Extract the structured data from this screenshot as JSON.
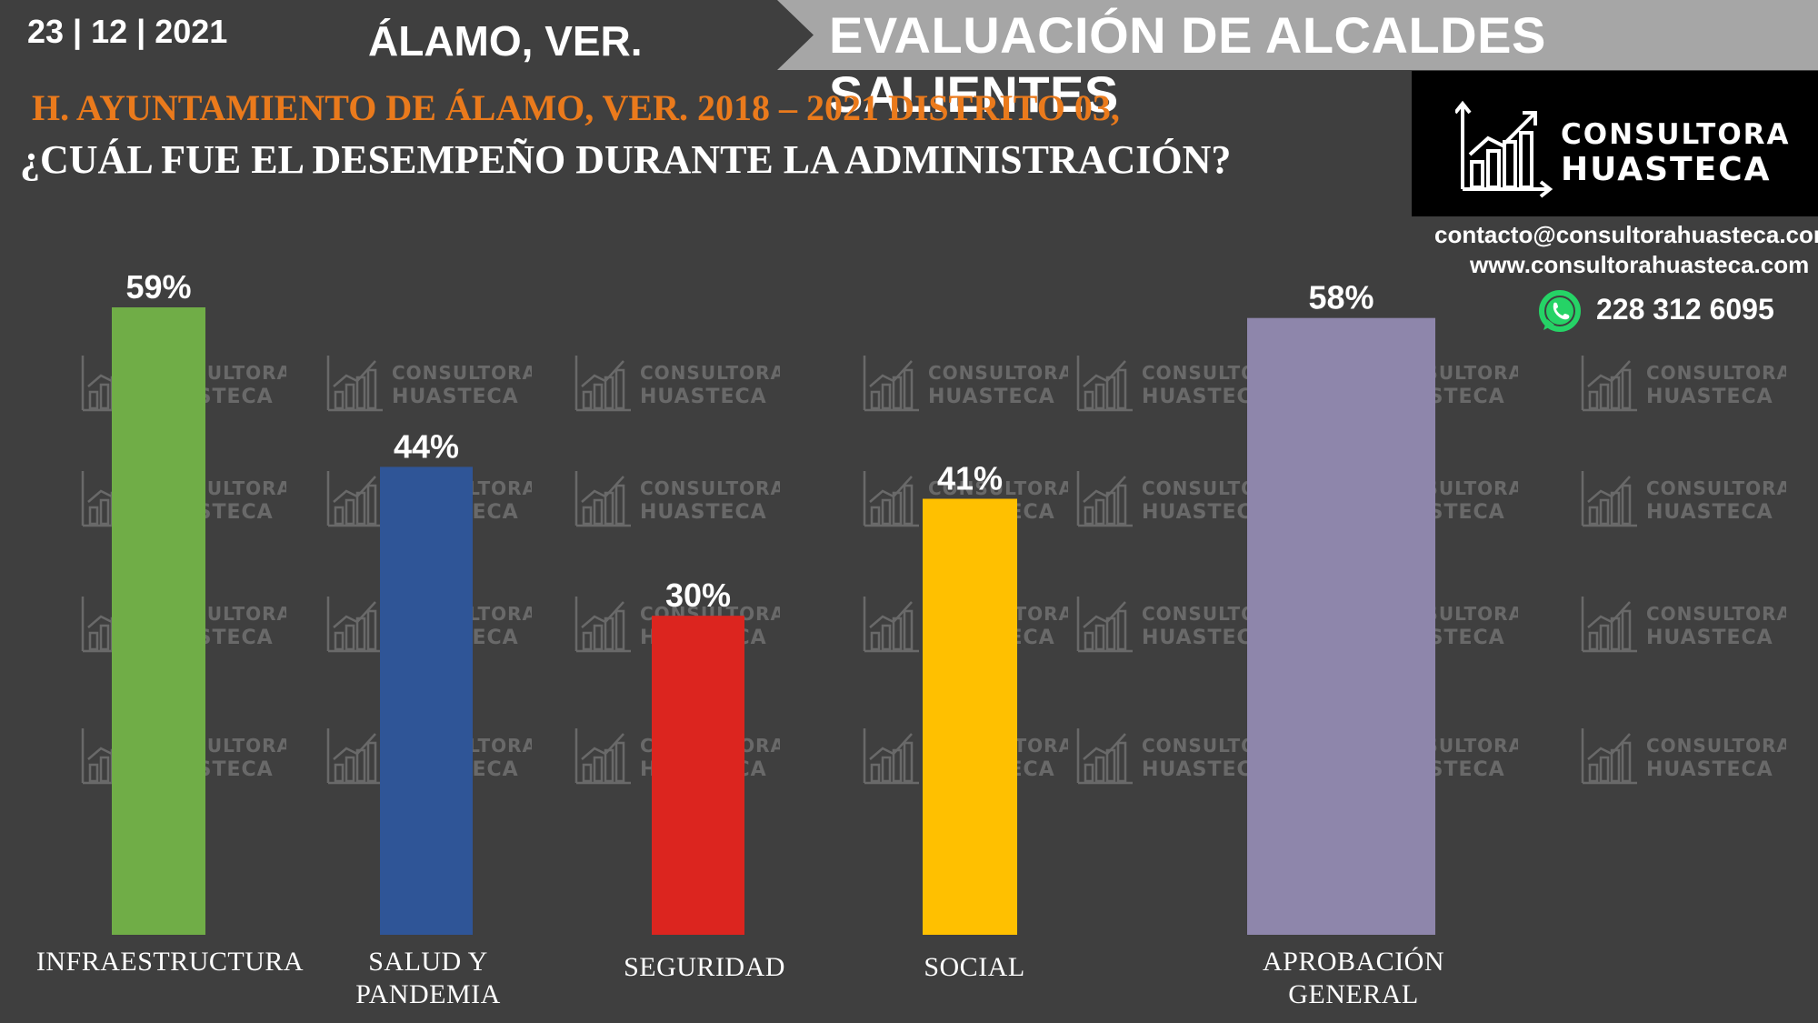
{
  "header": {
    "date": "23 | 12 | 2021",
    "city": "ÁLAMO, VER.",
    "banner_title": "EVALUACIÓN DE ALCALDES SALIENTES"
  },
  "subtitle": {
    "line1": "H. AYUNTAMIENTO DE ÁLAMO, VER. 2018 – 2021 DISTRITO 03,",
    "line2": "¿CUÁL FUE EL DESEMPEÑO DURANTE LA ADMINISTRACIÓN?"
  },
  "brand": {
    "logo_line1": "CONSULTORA",
    "logo_line2": "HUASTECA",
    "email": "contacto@consultorahuasteca.com",
    "website": "www.consultorahuasteca.com",
    "phone": "228 312 6095",
    "logo_icon": "growth-chart-icon",
    "phone_icon": "whatsapp-icon"
  },
  "colors": {
    "background": "#3f3f3f",
    "accent_orange": "#ea7a1c",
    "banner_gray": "#a6a6a6"
  },
  "chart_data": {
    "type": "bar",
    "categories": [
      "INFRAESTRUCTURA",
      "SALUD Y PANDEMIA",
      "SEGURIDAD",
      "SOCIAL",
      "APROBACIÓN GENERAL"
    ],
    "category_lines": [
      [
        "INFRAESTRUCTURA"
      ],
      [
        "SALUD Y",
        "PANDEMIA"
      ],
      [
        "SEGURIDAD"
      ],
      [
        "SOCIAL"
      ],
      [
        "APROBACIÓN",
        "GENERAL"
      ]
    ],
    "values": [
      59,
      44,
      30,
      41,
      58
    ],
    "value_labels": [
      "59%",
      "44%",
      "30%",
      "41%",
      "58%"
    ],
    "colors": [
      "#70ad47",
      "#2f5597",
      "#dc251f",
      "#ffc000",
      "#8e86ab"
    ],
    "unit": "%",
    "ylim": [
      0,
      59
    ],
    "grid": false,
    "legend": "none"
  }
}
